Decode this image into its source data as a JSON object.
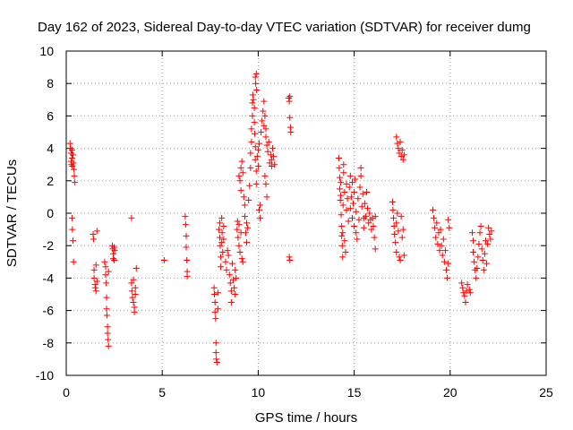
{
  "chart_data": {
    "type": "scatter",
    "title": "Day 162 of 2023, Sidereal Day-to-day VTEC variation (SDTVAR) for receiver dumg",
    "xlabel": "GPS time / hours",
    "ylabel": "SDTVAR / TECUs",
    "xlim": [
      0,
      25
    ],
    "ylim": [
      -10,
      10
    ],
    "xticks": [
      0,
      5,
      10,
      15,
      20,
      25
    ],
    "yticks": [
      -10,
      -8,
      -6,
      -4,
      -2,
      0,
      2,
      4,
      6,
      8,
      10
    ],
    "xtick_labels": [
      "0",
      "5",
      "10",
      "15",
      "20",
      "25"
    ],
    "ytick_labels": [
      "-10",
      "-8",
      "-6",
      "-4",
      "-2",
      "0",
      "2",
      "4",
      "6",
      "8",
      "10"
    ],
    "grid": true,
    "marker": "plus",
    "marker_color": "#ff0000",
    "series": [
      {
        "name": "SDTVAR",
        "points": [
          [
            0.2,
            4.3
          ],
          [
            0.22,
            4.0
          ],
          [
            0.25,
            3.7
          ],
          [
            0.25,
            3.2
          ],
          [
            0.27,
            3.0
          ],
          [
            0.3,
            3.9
          ],
          [
            0.3,
            3.4
          ],
          [
            0.32,
            2.9
          ],
          [
            0.35,
            3.6
          ],
          [
            0.38,
            3.1
          ],
          [
            0.4,
            2.7
          ],
          [
            0.42,
            2.3
          ],
          [
            0.45,
            1.9
          ],
          [
            0.3,
            -0.3
          ],
          [
            0.32,
            -1.0
          ],
          [
            0.35,
            -1.7
          ],
          [
            0.38,
            -3.0
          ],
          [
            1.4,
            -1.3
          ],
          [
            1.42,
            -1.6
          ],
          [
            1.45,
            -3.5
          ],
          [
            1.45,
            -4.0
          ],
          [
            1.5,
            -4.4
          ],
          [
            1.52,
            -4.6
          ],
          [
            1.55,
            -3.2
          ],
          [
            1.55,
            -4.8
          ],
          [
            1.6,
            -4.2
          ],
          [
            1.6,
            -1.1
          ],
          [
            2.0,
            -3.0
          ],
          [
            2.05,
            -3.3
          ],
          [
            2.05,
            -3.8
          ],
          [
            2.08,
            -4.3
          ],
          [
            2.1,
            -5.2
          ],
          [
            2.1,
            -5.9
          ],
          [
            2.12,
            -6.3
          ],
          [
            2.15,
            -7.0
          ],
          [
            2.15,
            -7.4
          ],
          [
            2.18,
            -7.8
          ],
          [
            2.2,
            -8.2
          ],
          [
            2.2,
            -3.6
          ],
          [
            2.4,
            -2.0
          ],
          [
            2.42,
            -2.2
          ],
          [
            2.45,
            -2.5
          ],
          [
            2.45,
            -2.8
          ],
          [
            2.5,
            -2.1
          ],
          [
            2.5,
            -2.9
          ],
          [
            2.52,
            -2.3
          ],
          [
            3.4,
            -0.3
          ],
          [
            3.4,
            -4.3
          ],
          [
            3.42,
            -4.8
          ],
          [
            3.45,
            -5.2
          ],
          [
            3.5,
            -5.5
          ],
          [
            3.5,
            -4.1
          ],
          [
            3.55,
            -5.8
          ],
          [
            3.55,
            -6.1
          ],
          [
            3.6,
            -4.6
          ],
          [
            3.6,
            -5.0
          ],
          [
            3.65,
            -3.4
          ],
          [
            5.1,
            -2.9
          ],
          [
            6.2,
            -0.2
          ],
          [
            6.22,
            -0.7
          ],
          [
            6.25,
            -1.4
          ],
          [
            6.25,
            -2.1
          ],
          [
            6.28,
            -2.9
          ],
          [
            6.3,
            -3.6
          ],
          [
            6.3,
            -3.9
          ],
          [
            7.7,
            -4.6
          ],
          [
            7.72,
            -5.0
          ],
          [
            7.75,
            -5.5
          ],
          [
            7.75,
            -6.1
          ],
          [
            7.78,
            -6.5
          ],
          [
            7.8,
            -8.0
          ],
          [
            7.8,
            -8.6
          ],
          [
            7.82,
            -9.0
          ],
          [
            7.85,
            -9.2
          ],
          [
            7.9,
            -5.9
          ],
          [
            7.9,
            -4.9
          ],
          [
            7.95,
            -1.0
          ],
          [
            8.0,
            -0.6
          ],
          [
            8.0,
            -1.5
          ],
          [
            8.02,
            -2.0
          ],
          [
            8.05,
            -2.7
          ],
          [
            8.05,
            -3.3
          ],
          [
            8.1,
            -0.3
          ],
          [
            8.1,
            -1.8
          ],
          [
            8.12,
            -1.2
          ],
          [
            8.15,
            -2.4
          ],
          [
            8.2,
            -0.8
          ],
          [
            8.2,
            -1.6
          ],
          [
            8.3,
            -3.0
          ],
          [
            8.35,
            -3.5
          ],
          [
            8.4,
            -2.3
          ],
          [
            8.45,
            -2.6
          ],
          [
            8.5,
            -3.8
          ],
          [
            8.55,
            -4.3
          ],
          [
            8.6,
            -4.8
          ],
          [
            8.6,
            -5.5
          ],
          [
            8.65,
            -3.1
          ],
          [
            8.7,
            -4.1
          ],
          [
            8.75,
            -4.6
          ],
          [
            8.8,
            -5.0
          ],
          [
            8.8,
            -3.5
          ],
          [
            8.85,
            -4.0
          ],
          [
            8.9,
            -1.0
          ],
          [
            8.92,
            -0.5
          ],
          [
            8.95,
            -1.5
          ],
          [
            9.0,
            -2.0
          ],
          [
            9.0,
            -0.7
          ],
          [
            9.05,
            -2.4
          ],
          [
            9.1,
            -1.2
          ],
          [
            9.15,
            -2.8
          ],
          [
            9.2,
            -3.0
          ],
          [
            9.0,
            2.3
          ],
          [
            9.05,
            2.0
          ],
          [
            9.1,
            1.4
          ],
          [
            9.1,
            2.8
          ],
          [
            9.15,
            3.2
          ],
          [
            9.2,
            2.5
          ],
          [
            9.25,
            1.0
          ],
          [
            9.3,
            0.5
          ],
          [
            9.3,
            -0.2
          ],
          [
            9.35,
            -1.2
          ],
          [
            9.4,
            -0.6
          ],
          [
            9.4,
            -1.8
          ],
          [
            9.45,
            -0.9
          ],
          [
            9.5,
            0.8
          ],
          [
            9.55,
            1.7
          ],
          [
            9.6,
            2.8
          ],
          [
            9.6,
            3.7
          ],
          [
            9.65,
            4.4
          ],
          [
            9.65,
            5.2
          ],
          [
            9.7,
            6.0
          ],
          [
            9.7,
            6.8
          ],
          [
            9.72,
            7.3
          ],
          [
            9.75,
            7.0
          ],
          [
            9.8,
            6.5
          ],
          [
            9.8,
            5.6
          ],
          [
            9.82,
            4.9
          ],
          [
            9.85,
            4.1
          ],
          [
            9.85,
            3.3
          ],
          [
            9.9,
            2.6
          ],
          [
            9.9,
            1.8
          ],
          [
            9.85,
            8.4
          ],
          [
            9.87,
            8.0
          ],
          [
            9.9,
            8.6
          ],
          [
            9.92,
            7.6
          ],
          [
            9.95,
            3.5
          ],
          [
            10.0,
            3.9
          ],
          [
            10.0,
            2.9
          ],
          [
            10.05,
            4.3
          ],
          [
            10.05,
            0.2
          ],
          [
            10.1,
            -0.3
          ],
          [
            10.1,
            0.5
          ],
          [
            10.15,
            5.0
          ],
          [
            10.2,
            5.7
          ],
          [
            10.25,
            6.3
          ],
          [
            10.3,
            6.9
          ],
          [
            10.3,
            5.4
          ],
          [
            10.35,
            6.0
          ],
          [
            10.4,
            5.2
          ],
          [
            10.4,
            4.7
          ],
          [
            10.45,
            4.2
          ],
          [
            10.35,
            2.3
          ],
          [
            10.4,
            1.8
          ],
          [
            10.45,
            1.0
          ],
          [
            10.5,
            3.8
          ],
          [
            10.55,
            4.4
          ],
          [
            10.6,
            3.1
          ],
          [
            10.65,
            3.6
          ],
          [
            10.7,
            3.3
          ],
          [
            10.7,
            2.9
          ],
          [
            10.75,
            4.0
          ],
          [
            10.8,
            3.5
          ],
          [
            10.85,
            3.0
          ],
          [
            11.6,
            7.1
          ],
          [
            11.62,
            6.9
          ],
          [
            11.65,
            7.2
          ],
          [
            11.65,
            5.9
          ],
          [
            11.68,
            5.3
          ],
          [
            11.7,
            5.0
          ],
          [
            11.62,
            -2.7
          ],
          [
            11.65,
            -2.9
          ],
          [
            14.2,
            3.4
          ],
          [
            14.22,
            2.8
          ],
          [
            14.25,
            2.2
          ],
          [
            14.25,
            1.5
          ],
          [
            14.28,
            0.8
          ],
          [
            14.3,
            1.9
          ],
          [
            14.3,
            1.1
          ],
          [
            14.32,
            -0.1
          ],
          [
            14.35,
            -0.8
          ],
          [
            14.35,
            -1.4
          ],
          [
            14.38,
            -2.0
          ],
          [
            14.4,
            -2.7
          ],
          [
            14.4,
            -1.2
          ],
          [
            14.42,
            0.5
          ],
          [
            14.45,
            2.5
          ],
          [
            14.45,
            3.0
          ],
          [
            14.5,
            1.3
          ],
          [
            14.5,
            -1.7
          ],
          [
            14.55,
            -2.4
          ],
          [
            14.6,
            1.8
          ],
          [
            14.6,
            0.2
          ],
          [
            14.65,
            0.9
          ],
          [
            14.7,
            -0.5
          ],
          [
            14.75,
            1.6
          ],
          [
            14.8,
            2.3
          ],
          [
            14.8,
            0.3
          ],
          [
            14.85,
            1.0
          ],
          [
            14.9,
            -0.3
          ],
          [
            14.9,
            1.9
          ],
          [
            14.95,
            0.6
          ],
          [
            15.0,
            -0.8
          ],
          [
            15.0,
            1.3
          ],
          [
            15.05,
            2.1
          ],
          [
            15.1,
            0.1
          ],
          [
            15.1,
            -1.2
          ],
          [
            15.15,
            -1.6
          ],
          [
            15.2,
            0.9
          ],
          [
            15.25,
            -0.4
          ],
          [
            15.3,
            1.6
          ],
          [
            15.35,
            2.3
          ],
          [
            15.35,
            2.8
          ],
          [
            15.4,
            0.4
          ],
          [
            15.45,
            1.2
          ],
          [
            15.5,
            -0.3
          ],
          [
            15.5,
            -0.9
          ],
          [
            15.55,
            0.6
          ],
          [
            15.6,
            -0.2
          ],
          [
            15.65,
            1.3
          ],
          [
            15.7,
            0.3
          ],
          [
            15.75,
            -0.6
          ],
          [
            15.8,
            0.0
          ],
          [
            15.85,
            -0.4
          ],
          [
            15.9,
            -1.0
          ],
          [
            15.95,
            -0.3
          ],
          [
            16.0,
            -0.8
          ],
          [
            16.05,
            -1.5
          ],
          [
            16.1,
            -2.2
          ],
          [
            16.1,
            -0.2
          ],
          [
            17.0,
            0.7
          ],
          [
            17.02,
            0.2
          ],
          [
            17.05,
            -0.3
          ],
          [
            17.08,
            -0.8
          ],
          [
            17.1,
            -1.3
          ],
          [
            17.15,
            -1.8
          ],
          [
            17.2,
            -0.6
          ],
          [
            17.2,
            -2.4
          ],
          [
            17.25,
            0.0
          ],
          [
            17.3,
            -1.1
          ],
          [
            17.35,
            -2.7
          ],
          [
            17.4,
            -2.9
          ],
          [
            17.45,
            -0.2
          ],
          [
            17.5,
            -1.5
          ],
          [
            17.55,
            -1.0
          ],
          [
            17.6,
            -2.6
          ],
          [
            17.2,
            4.7
          ],
          [
            17.25,
            4.3
          ],
          [
            17.3,
            4.0
          ],
          [
            17.35,
            3.7
          ],
          [
            17.4,
            4.4
          ],
          [
            17.45,
            3.5
          ],
          [
            17.5,
            3.9
          ],
          [
            17.55,
            3.3
          ],
          [
            17.6,
            3.6
          ],
          [
            19.1,
            0.2
          ],
          [
            19.15,
            -0.3
          ],
          [
            19.2,
            -0.9
          ],
          [
            19.25,
            -1.5
          ],
          [
            19.3,
            -0.6
          ],
          [
            19.35,
            -1.9
          ],
          [
            19.4,
            -1.2
          ],
          [
            19.45,
            -2.3
          ],
          [
            19.5,
            -1.0
          ],
          [
            19.55,
            -2.0
          ],
          [
            19.6,
            -2.6
          ],
          [
            19.65,
            -1.6
          ],
          [
            19.7,
            -3.0
          ],
          [
            19.75,
            -2.3
          ],
          [
            19.8,
            -3.5
          ],
          [
            19.85,
            -4.0
          ],
          [
            19.9,
            -3.1
          ],
          [
            19.9,
            -0.4
          ],
          [
            19.95,
            -0.9
          ],
          [
            20.6,
            -4.3
          ],
          [
            20.65,
            -4.6
          ],
          [
            20.7,
            -4.9
          ],
          [
            20.75,
            -5.1
          ],
          [
            20.8,
            -5.5
          ],
          [
            20.85,
            -4.8
          ],
          [
            20.9,
            -4.4
          ],
          [
            21.0,
            -4.7
          ],
          [
            21.05,
            -4.9
          ],
          [
            21.15,
            -1.2
          ],
          [
            21.2,
            -1.7
          ],
          [
            21.2,
            -2.4
          ],
          [
            21.25,
            -3.0
          ],
          [
            21.3,
            -3.5
          ],
          [
            21.35,
            -4.0
          ],
          [
            21.4,
            -3.4
          ],
          [
            21.45,
            -2.7
          ],
          [
            21.5,
            -1.9
          ],
          [
            21.55,
            -1.2
          ],
          [
            21.6,
            -0.8
          ],
          [
            21.65,
            -2.2
          ],
          [
            21.7,
            -2.9
          ],
          [
            21.75,
            -3.5
          ],
          [
            21.8,
            -2.5
          ],
          [
            21.85,
            -1.7
          ],
          [
            21.9,
            -3.1
          ],
          [
            21.95,
            -1.9
          ],
          [
            22.0,
            -0.9
          ],
          [
            22.05,
            -1.3
          ],
          [
            22.1,
            -1.6
          ],
          [
            22.15,
            -1.1
          ]
        ]
      }
    ]
  }
}
